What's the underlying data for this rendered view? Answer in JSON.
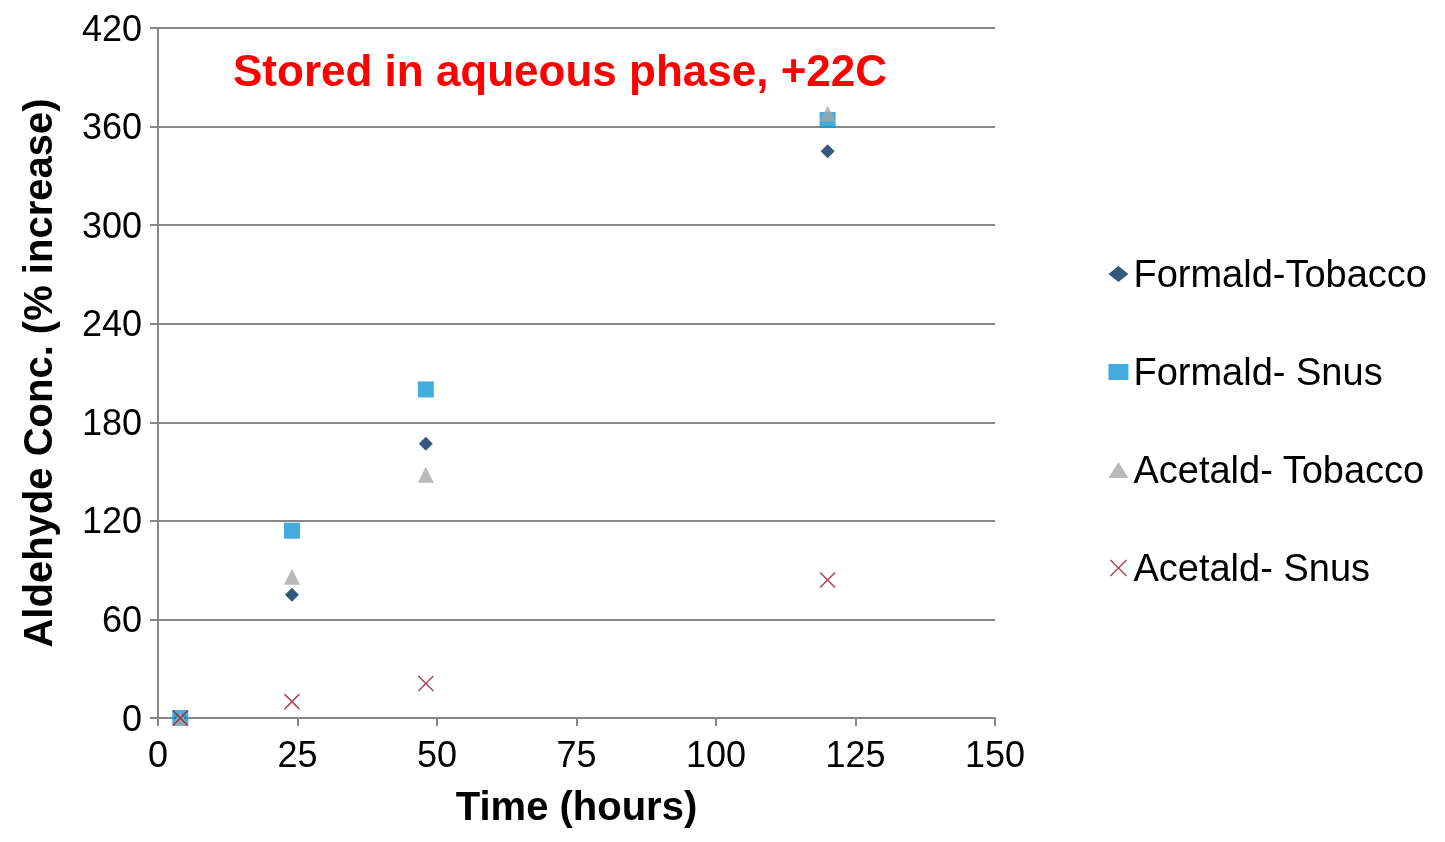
{
  "chart_data": {
    "type": "scatter",
    "title": "Stored in aqueous phase, +22C",
    "xlabel": "Time (hours)",
    "ylabel": "Aldehyde Conc. (% increase)",
    "x": [
      4,
      24,
      48,
      120
    ],
    "series": [
      {
        "name": "Formald-Tobacco",
        "color": "#002f5f",
        "marker": "diamond",
        "values": [
          0,
          75,
          167,
          345
        ]
      },
      {
        "name": "Formald- Snus",
        "color": "#1497d4",
        "marker": "square",
        "values": [
          0,
          114,
          200,
          364
        ]
      },
      {
        "name": "Acetald- Tobacco",
        "color": "#a5a8aa",
        "marker": "triangle",
        "values": [
          0,
          86,
          148,
          368
        ]
      },
      {
        "name": "Acetald- Snus",
        "color": "#a0192e",
        "marker": "cross",
        "values": [
          0,
          10,
          21,
          84
        ]
      }
    ],
    "xlim": [
      0,
      150
    ],
    "xticks": [
      0,
      25,
      50,
      75,
      100,
      125,
      150
    ],
    "ylim": [
      0,
      420
    ],
    "yticks": [
      0,
      60,
      120,
      180,
      240,
      300,
      360,
      420
    ],
    "grid": "y",
    "legend": "right"
  }
}
